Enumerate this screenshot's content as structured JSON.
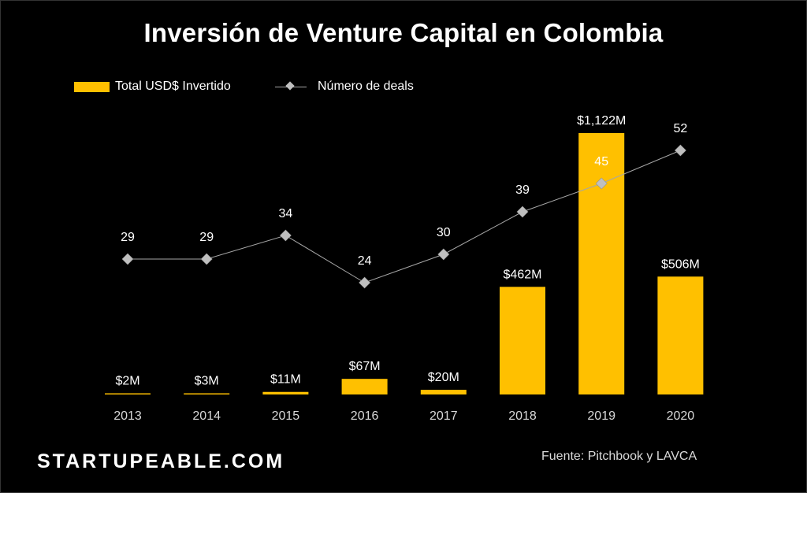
{
  "chart_data": {
    "type": "bar",
    "title": "Inversión de Venture Capital en Colombia",
    "categories": [
      "2013",
      "2014",
      "2015",
      "2016",
      "2017",
      "2018",
      "2019",
      "2020"
    ],
    "series": [
      {
        "name": "Total USD$ Invertido",
        "type": "bar",
        "values": [
          2,
          3,
          11,
          67,
          20,
          462,
          1122,
          506
        ],
        "labels": [
          "$2M",
          "$3M",
          "$11M",
          "$67M",
          "$20M",
          "$462M",
          "$1,122M",
          "$506M"
        ],
        "color": "#FFC000"
      },
      {
        "name": "Número de deals",
        "type": "line",
        "values": [
          29,
          29,
          34,
          24,
          30,
          39,
          45,
          52
        ],
        "labels": [
          "29",
          "29",
          "34",
          "24",
          "30",
          "39",
          "45",
          "52"
        ],
        "color": "#a6a6a6"
      }
    ],
    "legend": "top-left",
    "grid": false
  },
  "footer": {
    "brand": "STARTUPEABLE.COM",
    "source": "Fuente: Pitchbook y LAVCA"
  }
}
